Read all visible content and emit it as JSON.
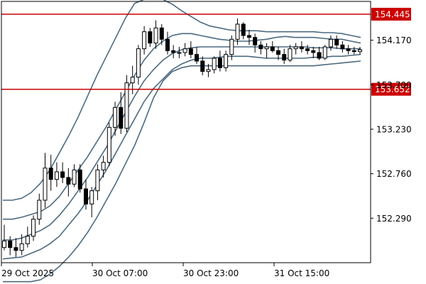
{
  "chart_data": {
    "type": "line",
    "title": "",
    "xlabel": "",
    "ylabel": "",
    "y_axis_position": "right",
    "ylim": [
      151.82,
      154.58
    ],
    "y_ticks": [
      "154.170",
      "153.700",
      "153.230",
      "152.760",
      "152.290"
    ],
    "x_ticks": [
      "29 Oct 2025",
      "30 Oct 07:00",
      "30 Oct 23:00",
      "31 Oct 15:00"
    ],
    "colors": {
      "candle": "#000000",
      "bands": "#4d6a80",
      "level": "#cc0000",
      "axis": "#000000"
    },
    "horizontal_levels": [
      {
        "value": 154.445,
        "label": "154.445"
      },
      {
        "value": 153.652,
        "label": "153.652"
      }
    ],
    "candles": [
      [
        151.98,
        152.22,
        151.95,
        152.05
      ],
      [
        152.05,
        152.1,
        151.9,
        151.98
      ],
      [
        151.98,
        152.08,
        151.88,
        151.95
      ],
      [
        151.95,
        152.12,
        151.9,
        152.02
      ],
      [
        152.02,
        152.2,
        151.98,
        152.1
      ],
      [
        152.1,
        152.32,
        152.05,
        152.28
      ],
      [
        152.28,
        152.55,
        152.22,
        152.48
      ],
      [
        152.48,
        152.98,
        152.4,
        152.82
      ],
      [
        152.82,
        152.96,
        152.58,
        152.7
      ],
      [
        152.7,
        152.88,
        152.62,
        152.78
      ],
      [
        152.78,
        152.88,
        152.66,
        152.72
      ],
      [
        152.72,
        152.82,
        152.52,
        152.65
      ],
      [
        152.65,
        152.86,
        152.62,
        152.8
      ],
      [
        152.8,
        152.86,
        152.56,
        152.6
      ],
      [
        152.6,
        152.7,
        152.38,
        152.44
      ],
      [
        152.44,
        152.62,
        152.3,
        152.58
      ],
      [
        152.58,
        152.86,
        152.48,
        152.8
      ],
      [
        152.8,
        152.95,
        152.72,
        152.88
      ],
      [
        152.88,
        153.3,
        152.84,
        153.25
      ],
      [
        153.25,
        153.52,
        153.16,
        153.46
      ],
      [
        153.46,
        153.62,
        153.18,
        153.24
      ],
      [
        153.24,
        153.8,
        153.2,
        153.72
      ],
      [
        153.72,
        153.9,
        153.6,
        153.78
      ],
      [
        153.78,
        154.12,
        153.7,
        154.08
      ],
      [
        154.08,
        154.32,
        154.02,
        154.26
      ],
      [
        154.26,
        154.3,
        154.1,
        154.14
      ],
      [
        154.14,
        154.38,
        154.08,
        154.3
      ],
      [
        154.3,
        154.34,
        154.12,
        154.18
      ],
      [
        154.18,
        154.26,
        154.02,
        154.06
      ],
      [
        154.06,
        154.12,
        153.98,
        154.04
      ],
      [
        154.04,
        154.1,
        153.98,
        154.04
      ],
      [
        154.04,
        154.14,
        154.0,
        154.08
      ],
      [
        154.08,
        154.16,
        153.98,
        154.02
      ],
      [
        154.02,
        154.1,
        153.92,
        153.95
      ],
      [
        153.95,
        154.0,
        153.8,
        153.84
      ],
      [
        153.84,
        153.92,
        153.78,
        153.86
      ],
      [
        153.86,
        154.0,
        153.82,
        153.98
      ],
      [
        153.98,
        154.06,
        153.84,
        153.88
      ],
      [
        153.88,
        154.06,
        153.84,
        154.02
      ],
      [
        154.02,
        154.22,
        153.96,
        154.18
      ],
      [
        154.18,
        154.4,
        154.12,
        154.34
      ],
      [
        154.34,
        154.36,
        154.18,
        154.22
      ],
      [
        154.22,
        154.28,
        154.12,
        154.2
      ],
      [
        154.2,
        154.24,
        154.04,
        154.12
      ],
      [
        154.12,
        154.16,
        154.02,
        154.08
      ],
      [
        154.08,
        154.14,
        153.98,
        154.1
      ],
      [
        154.1,
        154.16,
        154.04,
        154.06
      ],
      [
        154.06,
        154.1,
        153.96,
        154.02
      ],
      [
        154.02,
        154.08,
        153.92,
        153.96
      ],
      [
        153.96,
        154.12,
        153.94,
        154.08
      ],
      [
        154.08,
        154.14,
        154.02,
        154.1
      ],
      [
        154.1,
        154.16,
        154.04,
        154.08
      ],
      [
        154.08,
        154.12,
        154.02,
        154.06
      ],
      [
        154.06,
        154.1,
        153.98,
        154.04
      ],
      [
        154.04,
        154.1,
        153.96,
        153.98
      ],
      [
        153.98,
        154.12,
        153.96,
        154.1
      ],
      [
        154.1,
        154.22,
        154.06,
        154.18
      ],
      [
        154.18,
        154.22,
        154.08,
        154.12
      ],
      [
        154.12,
        154.16,
        154.04,
        154.08
      ],
      [
        154.08,
        154.12,
        154.02,
        154.06
      ],
      [
        154.06,
        154.1,
        154.02,
        154.05
      ],
      [
        154.05,
        154.1,
        154.02,
        154.07
      ]
    ],
    "bands": {
      "inner_upper": [
        152.28,
        152.28,
        152.3,
        152.33,
        152.36,
        152.42,
        152.52,
        152.66,
        152.8,
        152.94,
        153.1,
        153.26,
        153.44,
        153.62,
        153.8,
        153.96,
        154.08,
        154.16,
        154.22,
        154.24,
        154.24,
        154.22,
        154.2,
        154.18,
        154.17,
        154.16,
        154.16,
        154.17,
        154.18,
        154.2,
        154.21,
        154.2,
        154.2,
        154.2,
        154.19,
        154.18,
        154.18,
        154.16,
        154.14
      ],
      "middle": [
        152.06,
        152.06,
        152.08,
        152.12,
        152.16,
        152.22,
        152.32,
        152.44,
        152.58,
        152.72,
        152.88,
        153.04,
        153.22,
        153.4,
        153.58,
        153.74,
        153.86,
        153.96,
        154.03,
        154.07,
        154.09,
        154.1,
        154.1,
        154.1,
        154.1,
        154.1,
        154.1,
        154.1,
        154.1,
        154.1,
        154.1,
        154.1,
        154.1,
        154.09,
        154.09,
        154.09,
        154.08,
        154.08,
        154.08
      ],
      "inner_lower": [
        151.86,
        151.87,
        151.88,
        151.92,
        151.96,
        152.02,
        152.1,
        152.22,
        152.34,
        152.48,
        152.64,
        152.8,
        152.98,
        153.16,
        153.34,
        153.52,
        153.66,
        153.76,
        153.86,
        153.92,
        153.96,
        153.98,
        153.98,
        153.99,
        154.0,
        154.0,
        154.0,
        153.99,
        153.98,
        153.98,
        153.98,
        153.98,
        153.98,
        153.99,
        153.99,
        154.0,
        154.0,
        154.01,
        154.02
      ],
      "outer_upper": [
        152.48,
        152.48,
        152.5,
        152.56,
        152.66,
        152.8,
        152.98,
        153.16,
        153.36,
        153.58,
        153.8,
        154.0,
        154.2,
        154.4,
        154.56,
        154.6,
        154.6,
        154.6,
        154.55,
        154.48,
        154.42,
        154.36,
        154.32,
        154.3,
        154.28,
        154.27,
        154.27,
        154.27,
        154.26,
        154.26,
        154.26,
        154.26,
        154.26,
        154.26,
        154.25,
        154.25,
        154.24,
        154.22,
        154.2
      ],
      "outer_lower": [
        151.62,
        151.62,
        151.62,
        151.62,
        151.64,
        151.7,
        151.78,
        151.88,
        152.0,
        152.14,
        152.3,
        152.48,
        152.66,
        152.86,
        153.06,
        153.3,
        153.56,
        153.74,
        153.84,
        153.88,
        153.9,
        153.9,
        153.9,
        153.9,
        153.9,
        153.9,
        153.9,
        153.9,
        153.9,
        153.9,
        153.9,
        153.9,
        153.9,
        153.9,
        153.91,
        153.92,
        153.93,
        153.94,
        153.95
      ]
    }
  }
}
